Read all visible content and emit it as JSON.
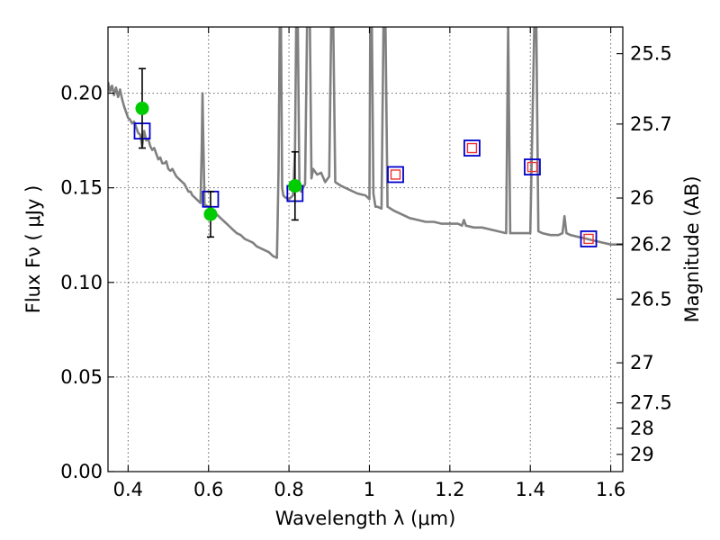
{
  "chart_data": {
    "type": "line",
    "xlabel": "Wavelength  λ (μm)",
    "ylabel": "Flux  Fν  ( μJy )",
    "ylabel_right": "Magnitude (AB)",
    "xlim": [
      0.35,
      1.63
    ],
    "ylim": [
      0.0,
      0.235
    ],
    "grid": true,
    "x_ticks": [
      0.4,
      0.6,
      0.8,
      1.0,
      1.2,
      1.4,
      1.6
    ],
    "x_tick_labels": [
      "0.4",
      "0.6",
      "0.8",
      "1",
      "1.2",
      "1.4",
      "1.6"
    ],
    "y_ticks": [
      0.0,
      0.05,
      0.1,
      0.15,
      0.2
    ],
    "y_tick_labels": [
      "0.00",
      "0.05",
      "0.10",
      "0.15",
      "0.20"
    ],
    "right_ticks": [
      {
        "flux": 0.2209,
        "label": "25.5"
      },
      {
        "flux": 0.1837,
        "label": "25.7"
      },
      {
        "flux": 0.1446,
        "label": "26"
      },
      {
        "flux": 0.1202,
        "label": "26.2"
      },
      {
        "flux": 0.0912,
        "label": "26.5"
      },
      {
        "flux": 0.0575,
        "label": "27"
      },
      {
        "flux": 0.0363,
        "label": "27.5"
      },
      {
        "flux": 0.0229,
        "label": "28"
      },
      {
        "flux": 0.0091,
        "label": "29"
      }
    ],
    "series": [
      {
        "kind": "line",
        "color": "#808080",
        "points": [
          [
            0.35,
            0.206
          ],
          [
            0.355,
            0.201
          ],
          [
            0.36,
            0.204
          ],
          [
            0.365,
            0.199
          ],
          [
            0.37,
            0.203
          ],
          [
            0.375,
            0.198
          ],
          [
            0.38,
            0.202
          ],
          [
            0.385,
            0.197
          ],
          [
            0.39,
            0.193
          ],
          [
            0.395,
            0.19
          ],
          [
            0.4,
            0.187
          ],
          [
            0.405,
            0.186
          ],
          [
            0.41,
            0.184
          ],
          [
            0.415,
            0.185
          ],
          [
            0.42,
            0.182
          ],
          [
            0.425,
            0.179
          ],
          [
            0.43,
            0.178
          ],
          [
            0.435,
            0.172
          ],
          [
            0.44,
            0.18
          ],
          [
            0.445,
            0.175
          ],
          [
            0.45,
            0.176
          ],
          [
            0.455,
            0.172
          ],
          [
            0.46,
            0.17
          ],
          [
            0.465,
            0.171
          ],
          [
            0.47,
            0.168
          ],
          [
            0.475,
            0.165
          ],
          [
            0.48,
            0.166
          ],
          [
            0.485,
            0.163
          ],
          [
            0.49,
            0.163
          ],
          [
            0.495,
            0.164
          ],
          [
            0.5,
            0.16
          ],
          [
            0.505,
            0.159
          ],
          [
            0.51,
            0.16
          ],
          [
            0.515,
            0.158
          ],
          [
            0.52,
            0.156
          ],
          [
            0.525,
            0.155
          ],
          [
            0.53,
            0.154
          ],
          [
            0.535,
            0.153
          ],
          [
            0.54,
            0.152
          ],
          [
            0.545,
            0.15
          ],
          [
            0.55,
            0.148
          ],
          [
            0.555,
            0.148
          ],
          [
            0.56,
            0.146
          ],
          [
            0.565,
            0.145
          ],
          [
            0.57,
            0.144
          ],
          [
            0.575,
            0.143
          ],
          [
            0.58,
            0.142
          ],
          [
            0.583,
            0.17
          ],
          [
            0.585,
            0.2
          ],
          [
            0.587,
            0.175
          ],
          [
            0.59,
            0.141
          ],
          [
            0.6,
            0.14
          ],
          [
            0.61,
            0.138
          ],
          [
            0.62,
            0.136
          ],
          [
            0.63,
            0.134
          ],
          [
            0.64,
            0.132
          ],
          [
            0.65,
            0.13
          ],
          [
            0.66,
            0.128
          ],
          [
            0.67,
            0.126
          ],
          [
            0.68,
            0.125
          ],
          [
            0.69,
            0.123
          ],
          [
            0.7,
            0.122
          ],
          [
            0.71,
            0.121
          ],
          [
            0.72,
            0.119
          ],
          [
            0.73,
            0.118
          ],
          [
            0.74,
            0.117
          ],
          [
            0.75,
            0.116
          ],
          [
            0.76,
            0.114
          ],
          [
            0.77,
            0.113
          ],
          [
            0.772,
            0.135
          ],
          [
            0.774,
            0.16
          ],
          [
            0.777,
            0.236
          ],
          [
            0.78,
            0.236
          ],
          [
            0.783,
            0.15
          ],
          [
            0.786,
            0.146
          ],
          [
            0.79,
            0.145
          ],
          [
            0.8,
            0.144
          ],
          [
            0.81,
            0.146
          ],
          [
            0.815,
            0.17
          ],
          [
            0.818,
            0.236
          ],
          [
            0.822,
            0.236
          ],
          [
            0.826,
            0.15
          ],
          [
            0.83,
            0.148
          ],
          [
            0.84,
            0.152
          ],
          [
            0.845,
            0.236
          ],
          [
            0.852,
            0.236
          ],
          [
            0.856,
            0.155
          ],
          [
            0.86,
            0.16
          ],
          [
            0.87,
            0.157
          ],
          [
            0.88,
            0.158
          ],
          [
            0.89,
            0.153
          ],
          [
            0.9,
            0.156
          ],
          [
            0.905,
            0.236
          ],
          [
            0.91,
            0.236
          ],
          [
            0.915,
            0.153
          ],
          [
            0.93,
            0.151
          ],
          [
            0.95,
            0.149
          ],
          [
            0.97,
            0.147
          ],
          [
            0.99,
            0.146
          ],
          [
            1.0,
            0.144
          ],
          [
            1.002,
            0.236
          ],
          [
            1.006,
            0.236
          ],
          [
            1.01,
            0.147
          ],
          [
            1.015,
            0.14
          ],
          [
            1.02,
            0.14
          ],
          [
            1.03,
            0.139
          ],
          [
            1.035,
            0.236
          ],
          [
            1.04,
            0.236
          ],
          [
            1.045,
            0.14
          ],
          [
            1.06,
            0.138
          ],
          [
            1.08,
            0.136
          ],
          [
            1.1,
            0.134
          ],
          [
            1.12,
            0.133
          ],
          [
            1.14,
            0.132
          ],
          [
            1.16,
            0.132
          ],
          [
            1.18,
            0.131
          ],
          [
            1.2,
            0.131
          ],
          [
            1.22,
            0.131
          ],
          [
            1.23,
            0.13
          ],
          [
            1.235,
            0.133
          ],
          [
            1.24,
            0.13
          ],
          [
            1.26,
            0.129
          ],
          [
            1.28,
            0.129
          ],
          [
            1.3,
            0.128
          ],
          [
            1.32,
            0.127
          ],
          [
            1.34,
            0.126
          ],
          [
            1.345,
            0.236
          ],
          [
            1.35,
            0.126
          ],
          [
            1.4,
            0.126
          ],
          [
            1.41,
            0.236
          ],
          [
            1.415,
            0.236
          ],
          [
            1.42,
            0.127
          ],
          [
            1.43,
            0.126
          ],
          [
            1.45,
            0.125
          ],
          [
            1.47,
            0.125
          ],
          [
            1.48,
            0.126
          ],
          [
            1.485,
            0.135
          ],
          [
            1.49,
            0.126
          ],
          [
            1.5,
            0.125
          ],
          [
            1.52,
            0.124
          ],
          [
            1.54,
            0.123
          ],
          [
            1.56,
            0.122
          ],
          [
            1.58,
            0.121
          ],
          [
            1.6,
            0.12
          ],
          [
            1.63,
            0.12
          ]
        ]
      },
      {
        "kind": "model-squares",
        "color": "#0000cc",
        "points": [
          [
            0.435,
            0.18
          ],
          [
            0.605,
            0.144
          ],
          [
            0.815,
            0.147
          ],
          [
            1.065,
            0.157
          ],
          [
            1.255,
            0.171
          ],
          [
            1.405,
            0.161
          ],
          [
            1.545,
            0.123
          ]
        ]
      },
      {
        "kind": "upper-limit-squares",
        "color": "#ee3333",
        "points": [
          [
            1.065,
            0.157
          ],
          [
            1.255,
            0.171
          ],
          [
            1.405,
            0.161
          ],
          [
            1.545,
            0.123
          ]
        ]
      },
      {
        "kind": "observed-points",
        "color": "#00cc00",
        "points": [
          [
            0.435,
            0.192,
            0.021
          ],
          [
            0.605,
            0.136,
            0.012
          ],
          [
            0.815,
            0.151,
            0.018
          ]
        ]
      }
    ]
  }
}
